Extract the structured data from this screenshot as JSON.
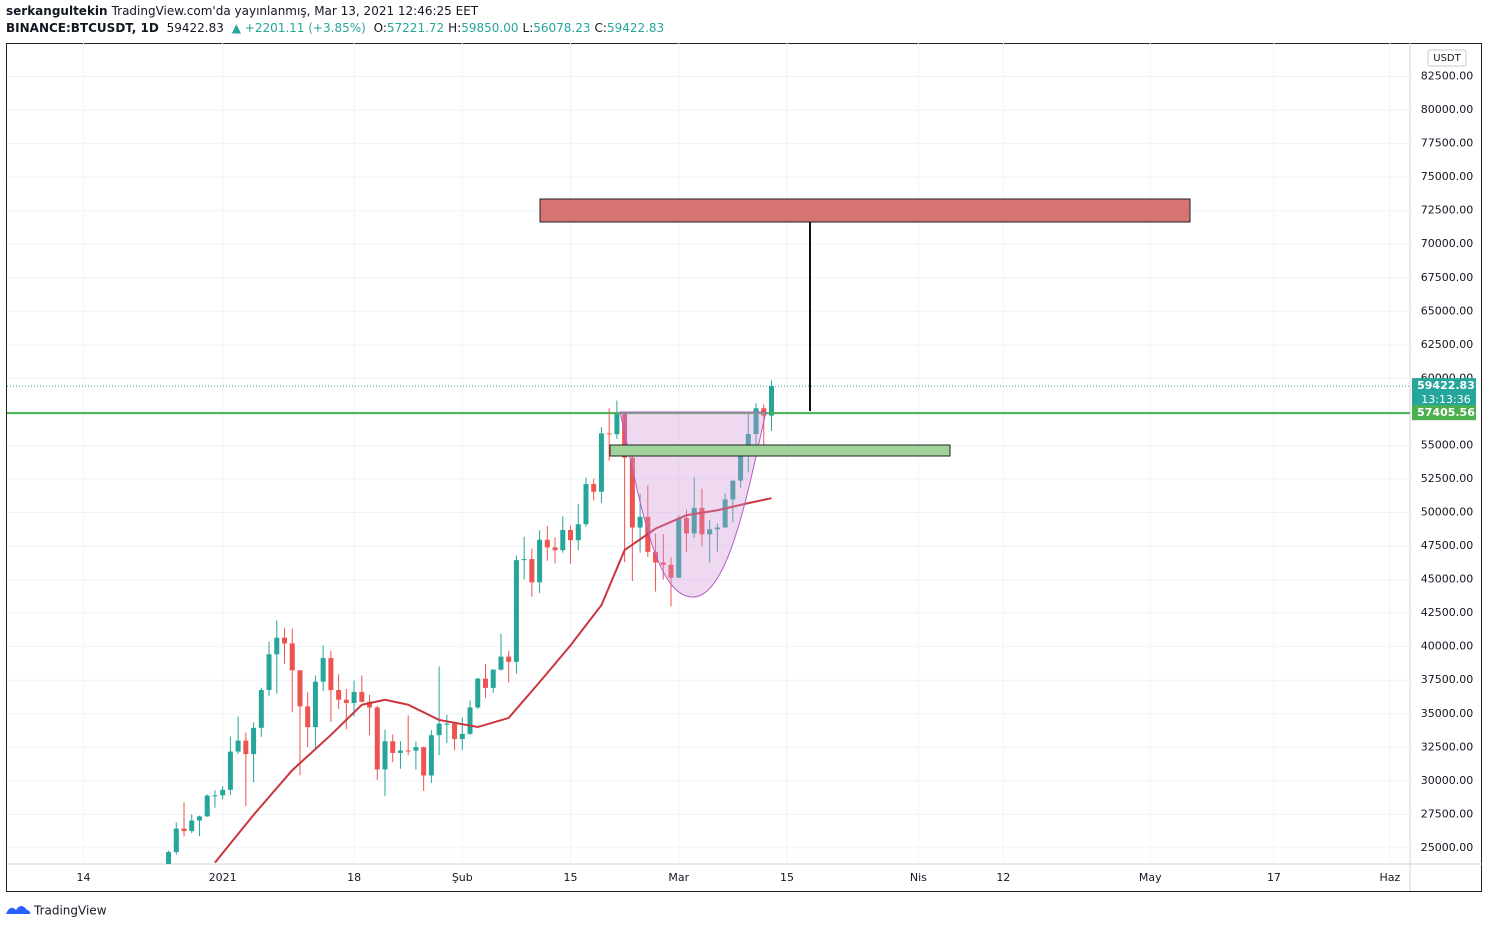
{
  "header": {
    "author": "serkangultekin",
    "published": "TradingView.com'da yayınlanmış, Mar 13, 2021 12:46:25 EET",
    "symbol": "BINANCE:BTCUSDT, 1D",
    "last": "59422.83",
    "change": "▲ +2201.11 (+3.85%)",
    "ohlc": [
      {
        "label": "O:",
        "value": "57221.72"
      },
      {
        "label": "H:",
        "value": "59850.00"
      },
      {
        "label": "L:",
        "value": "56078.23"
      },
      {
        "label": "C:",
        "value": "59422.83"
      }
    ]
  },
  "footer": {
    "brand": "TradingView"
  },
  "chart_data": {
    "type": "candlestick",
    "currency": "USDT",
    "up_color": "#26a69a",
    "down_color": "#ef5350",
    "grid": true,
    "x": [
      -7,
      -6,
      -5,
      -4,
      -3,
      -2,
      -1,
      0,
      1,
      2,
      3,
      4,
      5,
      6,
      7,
      8,
      9,
      10,
      11,
      12,
      13,
      14,
      15,
      16,
      17,
      18,
      19,
      20,
      21,
      22,
      23,
      24,
      25,
      26,
      27,
      28,
      29,
      30,
      31,
      32,
      33,
      34,
      35,
      36,
      37,
      38,
      39,
      40,
      41,
      42,
      43,
      44,
      45,
      46,
      47,
      48,
      49,
      50,
      51,
      52,
      53,
      54,
      55,
      56,
      57,
      58,
      59,
      60,
      61,
      62,
      63,
      64,
      65,
      66,
      67,
      68,
      69,
      70,
      71
    ],
    "open": [
      23740,
      24690,
      26440,
      26250,
      27040,
      27350,
      28900,
      28920,
      29330,
      32180,
      33000,
      31990,
      33950,
      36770,
      39430,
      40670,
      40240,
      38240,
      35550,
      34000,
      37390,
      39150,
      36770,
      36050,
      35800,
      36630,
      35890,
      35470,
      30850,
      32950,
      32080,
      32260,
      32250,
      32510,
      30400,
      33400,
      34260,
      34260,
      33110,
      33500,
      35470,
      37620,
      36930,
      38290,
      39260,
      38870,
      46450,
      46530,
      44800,
      47970,
      47400,
      47190,
      48700,
      47940,
      49130,
      52120,
      51550,
      55900,
      55840,
      57410,
      54090,
      48880,
      49680,
      47070,
      46280,
      46100,
      45135,
      49590,
      48440,
      50350,
      48374,
      48751,
      48882,
      50971,
      52375,
      54884,
      55851,
      57773,
      57221.72
    ],
    "high": [
      24800,
      26900,
      28400,
      27500,
      27400,
      28990,
      29300,
      29600,
      33300,
      34780,
      33600,
      34360,
      36940,
      40365,
      41950,
      41380,
      41350,
      38264,
      36600,
      37850,
      40100,
      39700,
      37950,
      36850,
      37470,
      37850,
      36415,
      35600,
      33826,
      33456,
      32945,
      34875,
      32921,
      32557,
      33783,
      38531,
      34934,
      34288,
      34717,
      35984,
      37662,
      38708,
      38310,
      40955,
      39700,
      46794,
      48200,
      47310,
      48678,
      48985,
      48150,
      49707,
      49010,
      50623,
      52619,
      52530,
      56368,
      57767,
      58352,
      57534,
      54183,
      51374,
      52041,
      48425,
      48394,
      46638,
      49790,
      50200,
      52640,
      51773,
      49448,
      49200,
      51450,
      52402,
      54895,
      57387,
      58150,
      58058,
      59850
    ],
    "low": [
      23400,
      24500,
      25850,
      26100,
      25880,
      27320,
      28000,
      28620,
      28950,
      32000,
      28130,
      29900,
      33290,
      36300,
      36500,
      38720,
      35111,
      30420,
      32510,
      32380,
      36700,
      34400,
      35360,
      33850,
      34800,
      35850,
      33400,
      30071,
      28850,
      31390,
      30900,
      31910,
      30837,
      29241,
      29842,
      31915,
      32825,
      32270,
      32296,
      33418,
      35362,
      36161,
      36570,
      38215,
      37351,
      37988,
      45020,
      43727,
      43995,
      46400,
      46202,
      47014,
      46174,
      47200,
      48947,
      50901,
      50710,
      53863,
      55477,
      46300,
      44892,
      47003,
      46674,
      44106,
      45000,
      43000,
      45115,
      47047,
      48100,
      47500,
      46300,
      47070,
      48882,
      49274,
      51845,
      53005,
      54269,
      55050,
      56078.23
    ],
    "close": [
      24690,
      26440,
      26250,
      27040,
      27350,
      28900,
      28920,
      29330,
      32180,
      33000,
      31990,
      33950,
      36770,
      39430,
      40670,
      40240,
      38240,
      35550,
      34000,
      37390,
      39150,
      36770,
      36050,
      35800,
      36630,
      35890,
      35470,
      30850,
      32950,
      32080,
      32260,
      32250,
      32510,
      30400,
      33400,
      34260,
      34260,
      33110,
      33500,
      35470,
      37620,
      36930,
      38290,
      39260,
      38870,
      46450,
      46530,
      44800,
      47970,
      47400,
      47190,
      48700,
      47940,
      49130,
      52120,
      51550,
      55900,
      55840,
      57410,
      54090,
      48880,
      49680,
      47070,
      46280,
      46100,
      45135,
      49590,
      48440,
      50350,
      48374,
      48751,
      48882,
      50971,
      52375,
      54884,
      55851,
      57773,
      57221.72,
      59422.83
    ],
    "ma": {
      "color": "#c9363c",
      "x": [
        -1,
        4,
        9,
        14,
        18,
        21,
        24,
        28,
        33,
        37,
        41,
        45,
        49,
        52,
        56,
        60,
        64,
        68,
        71
      ],
      "values": [
        23900,
        27460,
        30790,
        33420,
        35670,
        36040,
        35670,
        34540,
        34010,
        34690,
        37360,
        40100,
        43100,
        47200,
        48800,
        49800,
        50170,
        50700,
        51070
      ]
    },
    "price_lines": [
      {
        "value": 59422.83,
        "label": "59422.83",
        "countdown": "13:13:36",
        "color": "#26a69a",
        "style": "dotted"
      },
      {
        "value": 57405.56,
        "label": "57405.56",
        "color": "#4caf50",
        "style": "solid"
      }
    ],
    "xlim": [
      -27.9,
      153.6
    ],
    "ylim": [
      23800,
      85000
    ],
    "xticks": [
      {
        "value": -18,
        "label": "14"
      },
      {
        "value": 0,
        "label": "2021"
      },
      {
        "value": 17,
        "label": "18"
      },
      {
        "value": 31,
        "label": "Şub"
      },
      {
        "value": 45,
        "label": "15"
      },
      {
        "value": 59,
        "label": "Mar"
      },
      {
        "value": 73,
        "label": "15"
      },
      {
        "value": 90,
        "label": "Nis"
      },
      {
        "value": 101,
        "label": "12"
      },
      {
        "value": 120,
        "label": "May"
      },
      {
        "value": 136,
        "label": "17"
      },
      {
        "value": 151,
        "label": "Haz"
      }
    ],
    "yticks": [
      {
        "value": 25000,
        "label": "25000.00"
      },
      {
        "value": 27500,
        "label": "27500.00"
      },
      {
        "value": 30000,
        "label": "30000.00"
      },
      {
        "value": 32500,
        "label": "32500.00"
      },
      {
        "value": 35000,
        "label": "35000.00"
      },
      {
        "value": 37500,
        "label": "37500.00"
      },
      {
        "value": 40000,
        "label": "40000.00"
      },
      {
        "value": 42500,
        "label": "42500.00"
      },
      {
        "value": 45000,
        "label": "45000.00"
      },
      {
        "value": 47500,
        "label": "47500.00"
      },
      {
        "value": 50000,
        "label": "50000.00"
      },
      {
        "value": 52500,
        "label": "52500.00"
      },
      {
        "value": 55000,
        "label": "55000.00"
      },
      {
        "value": 57500,
        "label": "57500.00"
      },
      {
        "value": 60000,
        "label": "60000.00"
      },
      {
        "value": 62500,
        "label": "62500.00"
      },
      {
        "value": 65000,
        "label": "65000.00"
      },
      {
        "value": 67500,
        "label": "67500.00"
      },
      {
        "value": 70000,
        "label": "70000.00"
      },
      {
        "value": 72500,
        "label": "72500.00"
      },
      {
        "value": 75000,
        "label": "75000.00"
      },
      {
        "value": 77500,
        "label": "77500.00"
      },
      {
        "value": 80000,
        "label": "80000.00"
      },
      {
        "value": 82500,
        "label": "82500.00"
      }
    ]
  }
}
